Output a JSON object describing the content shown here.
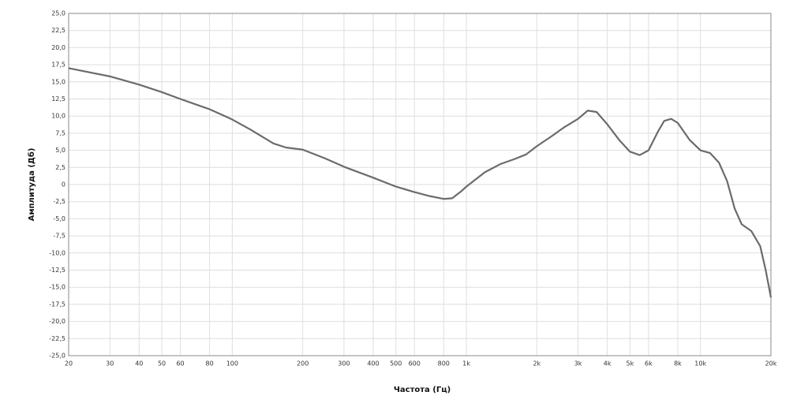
{
  "chart_data": {
    "type": "line",
    "x_label": "Частота (Гц)",
    "y_label": "Амплитуда (Дб)",
    "xscale": "log",
    "grid": true,
    "xlim": [
      20,
      20000
    ],
    "ylim": [
      -25,
      25
    ],
    "xticks": [
      20,
      30,
      40,
      50,
      60,
      80,
      100,
      200,
      300,
      400,
      500,
      600,
      800,
      {
        "value": 1000,
        "label": "1k"
      },
      {
        "value": 2000,
        "label": "2k"
      },
      {
        "value": 3000,
        "label": "3k"
      },
      {
        "value": 4000,
        "label": "4k"
      },
      {
        "value": 5000,
        "label": "5k"
      },
      {
        "value": 6000,
        "label": "6k"
      },
      {
        "value": 8000,
        "label": "8k"
      },
      {
        "value": 10000,
        "label": "10k"
      },
      {
        "value": 20000,
        "label": "20k"
      }
    ],
    "yticks": [
      {
        "value": 25,
        "label": "25,0"
      },
      {
        "value": 22.5,
        "label": "22,5"
      },
      {
        "value": 20,
        "label": "20,0"
      },
      {
        "value": 17.5,
        "label": "17,5"
      },
      {
        "value": 15,
        "label": "15,0"
      },
      {
        "value": 12.5,
        "label": "12,5"
      },
      {
        "value": 10,
        "label": "10,0"
      },
      {
        "value": 7.5,
        "label": "7,5"
      },
      {
        "value": 5,
        "label": "5,0"
      },
      {
        "value": 2.5,
        "label": "2,5"
      },
      0,
      {
        "value": -2.5,
        "label": "-2,5"
      },
      {
        "value": -5,
        "label": "-5,0"
      },
      {
        "value": -7.5,
        "label": "-7,5"
      },
      {
        "value": -10,
        "label": "-10,0"
      },
      {
        "value": -12.5,
        "label": "-12,5"
      },
      {
        "value": -15,
        "label": "-15,0"
      },
      {
        "value": -17.5,
        "label": "-17,5"
      },
      {
        "value": -20,
        "label": "-20,0"
      },
      {
        "value": -22.5,
        "label": "-22,5"
      },
      {
        "value": -25,
        "label": "-25,0"
      }
    ],
    "x": [
      20,
      30,
      40,
      50,
      60,
      80,
      100,
      120,
      150,
      170,
      200,
      250,
      300,
      400,
      500,
      600,
      700,
      800,
      870,
      950,
      1000,
      1200,
      1400,
      1600,
      1800,
      2000,
      2300,
      2600,
      3000,
      3300,
      3600,
      4000,
      4500,
      5000,
      5500,
      6000,
      6600,
      7000,
      7500,
      8000,
      9000,
      10000,
      11000,
      12000,
      13000,
      14000,
      15000,
      16500,
      18000,
      19000,
      20000
    ],
    "series": [
      {
        "color": "#6b6b6b",
        "values": [
          17.0,
          15.8,
          14.6,
          13.5,
          12.5,
          11.0,
          9.5,
          8.0,
          6.0,
          5.4,
          5.1,
          3.8,
          2.6,
          1.0,
          -0.3,
          -1.1,
          -1.7,
          -2.1,
          -2.0,
          -1.0,
          -0.3,
          1.8,
          3.0,
          3.7,
          4.4,
          5.6,
          7.0,
          8.3,
          9.6,
          10.8,
          10.6,
          8.8,
          6.5,
          4.8,
          4.3,
          5.0,
          7.8,
          9.3,
          9.6,
          9.0,
          6.5,
          5.0,
          4.6,
          3.2,
          0.5,
          -3.5,
          -5.8,
          -6.8,
          -9.0,
          -12.5,
          -16.5
        ]
      }
    ]
  }
}
